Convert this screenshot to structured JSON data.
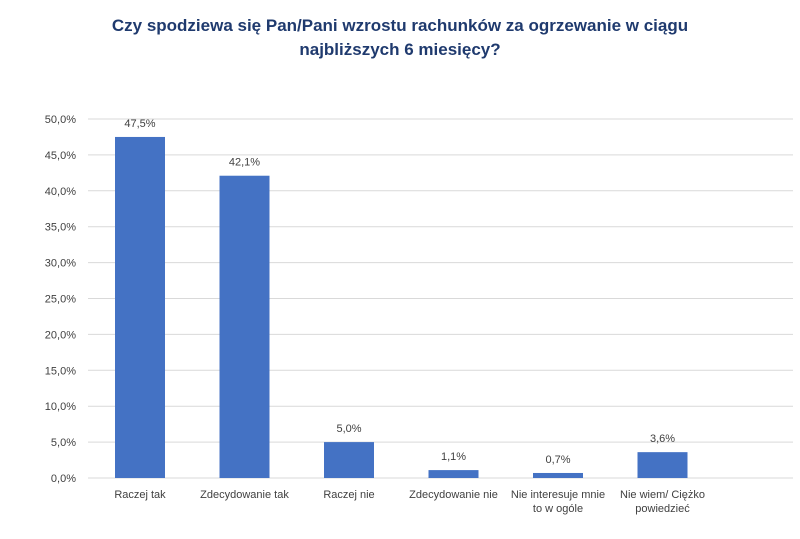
{
  "chart_data": {
    "type": "bar",
    "title_lines": [
      "Czy spodziewa się Pan/Pani wzrostu rachunków za ogrzewanie w ciągu",
      "najbliższych 6 miesięcy?"
    ],
    "categories": [
      [
        "Raczej tak"
      ],
      [
        "Zdecydowanie tak"
      ],
      [
        "Raczej nie"
      ],
      [
        "Zdecydowanie nie"
      ],
      [
        "Nie interesuje mnie",
        "to w ogóle"
      ],
      [
        "Nie wiem/ Ciężko",
        "powiedzieć"
      ]
    ],
    "values": [
      47.5,
      42.1,
      5.0,
      1.1,
      0.7,
      3.6
    ],
    "value_labels": [
      "47,5%",
      "42,1%",
      "5,0%",
      "1,1%",
      "0,7%",
      "3,6%"
    ],
    "y_ticks": [
      0,
      5,
      10,
      15,
      20,
      25,
      30,
      35,
      40,
      45,
      50
    ],
    "y_tick_labels": [
      "0,0%",
      "5,0%",
      "10,0%",
      "15,0%",
      "20,0%",
      "25,0%",
      "30,0%",
      "35,0%",
      "40,0%",
      "45,0%",
      "50,0%"
    ],
    "ylim": [
      0,
      50
    ],
    "grid": true,
    "bar_color": "#4472c4",
    "grid_color": "#d9d9d9",
    "title_color": "#1f3a6e"
  }
}
